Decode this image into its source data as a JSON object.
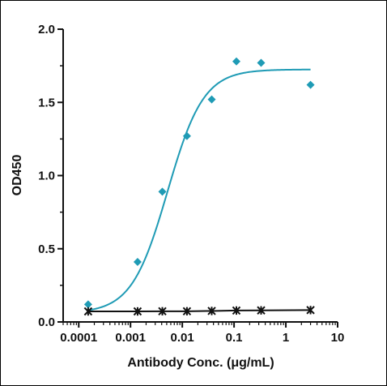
{
  "chart_data": {
    "type": "scatter",
    "title": "",
    "xlabel": "Antibody Conc. (μg/mL)",
    "ylabel": "OD450",
    "x_scale": "log",
    "xlim": [
      5e-05,
      10
    ],
    "ylim": [
      0,
      2.0
    ],
    "x_ticks": [
      {
        "value": 0.0001,
        "label": "0.0001"
      },
      {
        "value": 0.001,
        "label": "0.001"
      },
      {
        "value": 0.01,
        "label": "0.01"
      },
      {
        "value": 0.1,
        "label": "0.1"
      },
      {
        "value": 1,
        "label": "1"
      },
      {
        "value": 10,
        "label": "10"
      }
    ],
    "y_ticks": [
      {
        "value": 0.0,
        "label": "0.0"
      },
      {
        "value": 0.5,
        "label": "0.5"
      },
      {
        "value": 1.0,
        "label": "1.0"
      },
      {
        "value": 1.5,
        "label": "1.5"
      },
      {
        "value": 2.0,
        "label": "2.0"
      }
    ],
    "grid": false,
    "legend": "none",
    "series": [
      {
        "marker": "diamond",
        "color": "#1f9bb5",
        "fit": "sigmoid",
        "fit_params": {
          "bottom": 0.06,
          "top": 1.725,
          "ec50": 0.0052,
          "hill": 1.25
        },
        "x": [
          0.000152,
          0.00137,
          0.00412,
          0.0123,
          0.037,
          0.111,
          0.333,
          3.0
        ],
        "y": [
          0.12,
          0.41,
          0.89,
          1.27,
          1.52,
          1.78,
          1.77,
          1.62
        ]
      },
      {
        "marker": "star",
        "color": "#111111",
        "fit": "line",
        "x": [
          0.000152,
          0.00137,
          0.00412,
          0.0123,
          0.037,
          0.111,
          0.333,
          3.0
        ],
        "y": [
          0.072,
          0.072,
          0.073,
          0.073,
          0.075,
          0.078,
          0.079,
          0.081
        ]
      }
    ]
  }
}
